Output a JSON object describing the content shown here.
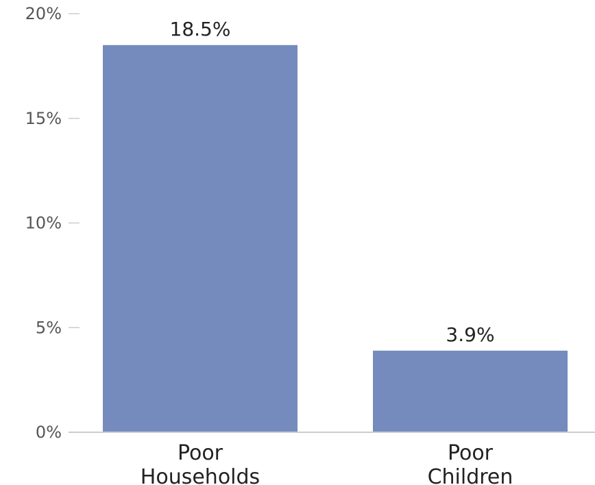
{
  "chart_data": {
    "type": "bar",
    "categories": [
      [
        "Poor",
        "Households"
      ],
      [
        "Poor",
        "Children"
      ]
    ],
    "values": [
      18.5,
      3.9
    ],
    "value_labels": [
      "18.5%",
      "3.9%"
    ],
    "y_ticks": [
      {
        "value": 0,
        "label": "0%"
      },
      {
        "value": 5,
        "label": "5%"
      },
      {
        "value": 10,
        "label": "10%"
      },
      {
        "value": 15,
        "label": "15%"
      },
      {
        "value": 20,
        "label": "20%"
      }
    ],
    "ylim": [
      0,
      20
    ],
    "grid": false,
    "title": "",
    "xlabel": "",
    "ylabel": "",
    "colors": {
      "bar": "#758bbd",
      "axis": "#cccccc",
      "tick_text": "#555555",
      "label_text": "#222222"
    }
  }
}
